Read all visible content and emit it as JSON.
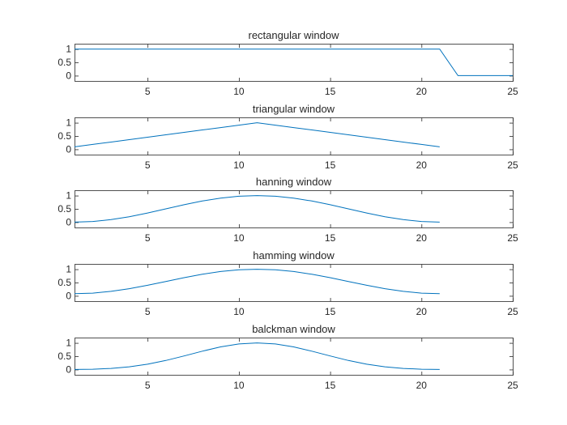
{
  "figure": {
    "background": "#ffffff",
    "line_color": "#0072BD",
    "axes_color": "#262626"
  },
  "chart_data": [
    {
      "type": "line",
      "title": "rectangular window",
      "xlim": [
        1,
        25
      ],
      "ylim": [
        -0.2,
        1.2
      ],
      "xticks": [
        5,
        10,
        15,
        20,
        25
      ],
      "yticks": [
        0,
        0.5,
        1
      ],
      "ytick_labels": [
        "0",
        "0.5",
        "1"
      ],
      "grid": false,
      "series": [
        {
          "x": [
            1,
            2,
            3,
            4,
            5,
            6,
            7,
            8,
            9,
            10,
            11,
            12,
            13,
            14,
            15,
            16,
            17,
            18,
            19,
            20,
            21,
            22,
            23,
            24,
            25
          ],
          "y": [
            1,
            1,
            1,
            1,
            1,
            1,
            1,
            1,
            1,
            1,
            1,
            1,
            1,
            1,
            1,
            1,
            1,
            1,
            1,
            1,
            1,
            0,
            0,
            0,
            0
          ]
        }
      ]
    },
    {
      "type": "line",
      "title": "triangular window",
      "xlim": [
        1,
        25
      ],
      "ylim": [
        -0.2,
        1.2
      ],
      "xticks": [
        5,
        10,
        15,
        20,
        25
      ],
      "yticks": [
        0,
        0.5,
        1
      ],
      "ytick_labels": [
        "0",
        "0.5",
        "1"
      ],
      "grid": false,
      "series": [
        {
          "x": [
            1,
            2,
            3,
            4,
            5,
            6,
            7,
            8,
            9,
            10,
            11,
            12,
            13,
            14,
            15,
            16,
            17,
            18,
            19,
            20,
            21
          ],
          "y": [
            0.091,
            0.182,
            0.273,
            0.364,
            0.455,
            0.545,
            0.636,
            0.727,
            0.818,
            0.909,
            1,
            0.909,
            0.818,
            0.727,
            0.636,
            0.545,
            0.455,
            0.364,
            0.273,
            0.182,
            0.091
          ]
        }
      ]
    },
    {
      "type": "line",
      "title": "hanning window",
      "xlim": [
        1,
        25
      ],
      "ylim": [
        -0.2,
        1.2
      ],
      "xticks": [
        5,
        10,
        15,
        20,
        25
      ],
      "yticks": [
        0,
        0.5,
        1
      ],
      "ytick_labels": [
        "0",
        "0.5",
        "1"
      ],
      "grid": false,
      "series": [
        {
          "x": [
            1,
            2,
            3,
            4,
            5,
            6,
            7,
            8,
            9,
            10,
            11,
            12,
            13,
            14,
            15,
            16,
            17,
            18,
            19,
            20,
            21
          ],
          "y": [
            0.0,
            0.024,
            0.095,
            0.206,
            0.345,
            0.5,
            0.655,
            0.794,
            0.905,
            0.976,
            1.0,
            0.976,
            0.905,
            0.794,
            0.655,
            0.5,
            0.345,
            0.206,
            0.095,
            0.024,
            0.0
          ]
        }
      ]
    },
    {
      "type": "line",
      "title": "hamming window",
      "xlim": [
        1,
        25
      ],
      "ylim": [
        -0.2,
        1.2
      ],
      "xticks": [
        5,
        10,
        15,
        20,
        25
      ],
      "yticks": [
        0,
        0.5,
        1
      ],
      "ytick_labels": [
        "0",
        "0.5",
        "1"
      ],
      "grid": false,
      "series": [
        {
          "x": [
            1,
            2,
            3,
            4,
            5,
            6,
            7,
            8,
            9,
            10,
            11,
            12,
            13,
            14,
            15,
            16,
            17,
            18,
            19,
            20,
            21
          ],
          "y": [
            0.08,
            0.102,
            0.167,
            0.27,
            0.397,
            0.54,
            0.683,
            0.81,
            0.913,
            0.978,
            1.0,
            0.978,
            0.913,
            0.81,
            0.683,
            0.54,
            0.397,
            0.27,
            0.167,
            0.102,
            0.08
          ]
        }
      ]
    },
    {
      "type": "line",
      "title": "balckman window",
      "xlim": [
        1,
        25
      ],
      "ylim": [
        -0.2,
        1.2
      ],
      "xticks": [
        5,
        10,
        15,
        20,
        25
      ],
      "yticks": [
        0,
        0.5,
        1
      ],
      "ytick_labels": [
        "0",
        "0.5",
        "1"
      ],
      "grid": false,
      "series": [
        {
          "x": [
            1,
            2,
            3,
            4,
            5,
            6,
            7,
            8,
            9,
            10,
            11,
            12,
            13,
            14,
            15,
            16,
            17,
            18,
            19,
            20,
            21
          ],
          "y": [
            0.0,
            0.009,
            0.04,
            0.101,
            0.2,
            0.34,
            0.51,
            0.688,
            0.849,
            0.961,
            1.0,
            0.961,
            0.849,
            0.688,
            0.51,
            0.34,
            0.2,
            0.101,
            0.04,
            0.009,
            0.0
          ]
        }
      ]
    }
  ]
}
